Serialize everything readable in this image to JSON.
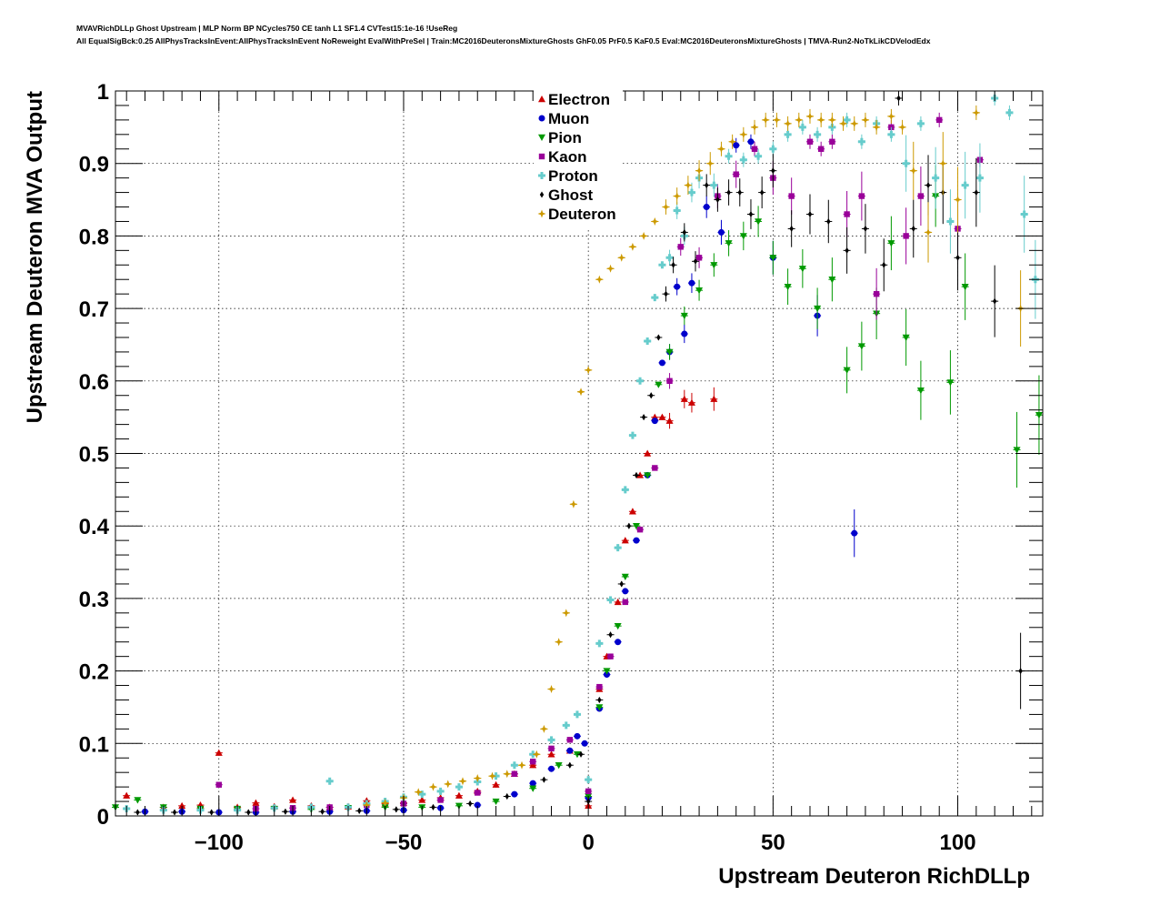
{
  "header": {
    "line1": "MVAVRichDLLp Ghost Upstream | MLP Norm BP NCycles750 CE tanh L1 SF1.4 CVTest15:1e-16 !UseReg",
    "line2": "All EqualSigBck:0.25 AllPhysTracksInEvent:AllPhysTracksInEvent NoReweight EvalWithPreSel | Train:MC2016DeuteronsMixtureGhosts GhF0.05 PrF0.5 KaF0.5 Eval:MC2016DeuteronsMixtureGhosts | TMVA-Run2-NoTkLikCDVelodEdx"
  },
  "chart_data": {
    "type": "scatter",
    "xlabel": "Upstream Deuteron RichDLLp",
    "ylabel": "Upstream Deuteron MVA Output",
    "xlim": [
      -128,
      123
    ],
    "ylim": [
      0,
      1
    ],
    "xticks": [
      -100,
      -50,
      0,
      50,
      100
    ],
    "yticks": [
      0,
      0.1,
      0.2,
      0.3,
      0.4,
      0.5,
      0.6,
      0.7,
      0.8,
      0.9,
      1
    ],
    "xtick_labels": [
      "−100",
      "−50",
      "0",
      "50",
      "100"
    ],
    "ytick_labels": [
      "0",
      "0.1",
      "0.2",
      "0.3",
      "0.4",
      "0.5",
      "0.6",
      "0.7",
      "0.8",
      "0.9",
      "1"
    ],
    "grid": true,
    "legend_position": "top-center",
    "series": [
      {
        "name": "Electron",
        "color": "#cc0000",
        "marker": "triangle-up",
        "x": [
          -125,
          -115,
          -110,
          -105,
          -100,
          -95,
          -90,
          -85,
          -80,
          -75,
          -70,
          -65,
          -60,
          -55,
          -50,
          -45,
          -40,
          -35,
          -30,
          -25,
          -20,
          -15,
          -10,
          -5,
          0,
          3,
          5,
          8,
          10,
          12,
          14,
          16,
          18,
          20,
          22,
          26,
          28,
          34
        ],
        "y": [
          0.028,
          0.012,
          0.014,
          0.015,
          0.087,
          0.012,
          0.018,
          0.013,
          0.022,
          0.014,
          0.012,
          0.013,
          0.021,
          0.017,
          0.018,
          0.022,
          0.025,
          0.028,
          0.034,
          0.043,
          0.058,
          0.07,
          0.085,
          0.09,
          0.014,
          0.175,
          0.22,
          0.295,
          0.38,
          0.42,
          0.47,
          0.5,
          0.55,
          0.55,
          0.545,
          0.575,
          0.57,
          0.575
        ]
      },
      {
        "name": "Muon",
        "color": "#0000cc",
        "marker": "circle",
        "x": [
          -120,
          -110,
          -100,
          -90,
          -80,
          -70,
          -60,
          -50,
          -40,
          -30,
          -20,
          -15,
          -10,
          -5,
          -3,
          -1,
          0,
          3,
          5,
          8,
          10,
          13,
          16,
          18,
          20,
          22,
          24,
          26,
          28,
          32,
          36,
          40,
          44,
          50,
          62,
          72
        ],
        "y": [
          0.006,
          0.006,
          0.005,
          0.005,
          0.006,
          0.006,
          0.007,
          0.008,
          0.011,
          0.015,
          0.03,
          0.045,
          0.065,
          0.09,
          0.11,
          0.1,
          0.025,
          0.148,
          0.195,
          0.24,
          0.31,
          0.38,
          0.47,
          0.545,
          0.625,
          0.64,
          0.73,
          0.665,
          0.735,
          0.84,
          0.805,
          0.925,
          0.93,
          0.77,
          0.69,
          0.39
        ]
      },
      {
        "name": "Pion",
        "color": "#009900",
        "marker": "triangle-down",
        "x": [
          -128,
          -122,
          -115,
          -105,
          -95,
          -85,
          -75,
          -65,
          -55,
          -45,
          -35,
          -25,
          -15,
          -8,
          -3,
          0,
          3,
          5,
          8,
          10,
          13,
          16,
          19,
          22,
          26,
          30,
          34,
          38,
          42,
          46,
          50,
          54,
          58,
          62,
          66,
          70,
          74,
          78,
          82,
          86,
          90,
          94,
          98,
          102,
          116,
          122
        ],
        "y": [
          0.012,
          0.022,
          0.012,
          0.01,
          0.01,
          0.01,
          0.009,
          0.011,
          0.012,
          0.012,
          0.014,
          0.02,
          0.038,
          0.07,
          0.085,
          0.027,
          0.15,
          0.2,
          0.262,
          0.33,
          0.4,
          0.47,
          0.595,
          0.64,
          0.69,
          0.725,
          0.76,
          0.79,
          0.8,
          0.82,
          0.77,
          0.73,
          0.755,
          0.7,
          0.74,
          0.615,
          0.648,
          0.693,
          0.79,
          0.66,
          0.587,
          0.855,
          0.598,
          0.73,
          0.505,
          0.553
        ]
      },
      {
        "name": "Kaon",
        "color": "#990099",
        "marker": "square",
        "x": [
          -100,
          -90,
          -80,
          -70,
          -60,
          -50,
          -40,
          -30,
          -20,
          -15,
          -10,
          -5,
          0,
          3,
          6,
          10,
          14,
          18,
          22,
          25,
          30,
          35,
          40,
          45,
          50,
          55,
          60,
          63,
          66,
          70,
          74,
          78,
          82,
          86,
          90,
          95,
          100,
          106
        ],
        "y": [
          0.043,
          0.01,
          0.011,
          0.012,
          0.015,
          0.017,
          0.022,
          0.032,
          0.058,
          0.075,
          0.093,
          0.105,
          0.034,
          0.178,
          0.22,
          0.295,
          0.395,
          0.48,
          0.6,
          0.785,
          0.77,
          0.855,
          0.885,
          0.92,
          0.88,
          0.855,
          0.93,
          0.92,
          0.93,
          0.83,
          0.855,
          0.72,
          0.95,
          0.8,
          0.855,
          0.96,
          0.81,
          0.905
        ]
      },
      {
        "name": "Proton",
        "color": "#66cccc",
        "marker": "cross",
        "x": [
          -125,
          -115,
          -105,
          -95,
          -85,
          -75,
          -70,
          -65,
          -60,
          -55,
          -50,
          -45,
          -40,
          -35,
          -30,
          -25,
          -20,
          -15,
          -10,
          -6,
          -3,
          0,
          3,
          6,
          8,
          10,
          12,
          14,
          16,
          18,
          20,
          22,
          24,
          26,
          28,
          30,
          34,
          38,
          42,
          46,
          50,
          54,
          58,
          62,
          66,
          70,
          74,
          78,
          82,
          86,
          90,
          94,
          98,
          102,
          106,
          110,
          114,
          118,
          121
        ],
        "y": [
          0.01,
          0.008,
          0.008,
          0.008,
          0.011,
          0.012,
          0.048,
          0.012,
          0.017,
          0.02,
          0.026,
          0.03,
          0.034,
          0.04,
          0.047,
          0.055,
          0.07,
          0.085,
          0.105,
          0.125,
          0.14,
          0.05,
          0.238,
          0.298,
          0.37,
          0.45,
          0.525,
          0.6,
          0.655,
          0.715,
          0.76,
          0.77,
          0.835,
          0.8,
          0.86,
          0.88,
          0.87,
          0.91,
          0.905,
          0.91,
          0.92,
          0.94,
          0.95,
          0.94,
          0.95,
          0.96,
          0.93,
          0.955,
          0.94,
          0.9,
          0.955,
          0.88,
          0.82,
          0.87,
          0.88,
          0.99,
          0.97,
          0.83,
          0.74
        ]
      },
      {
        "name": "Ghost",
        "color": "#000000",
        "marker": "diamond",
        "x": [
          -122,
          -112,
          -102,
          -92,
          -82,
          -72,
          -62,
          -52,
          -42,
          -32,
          -22,
          -12,
          -5,
          -2,
          0,
          3,
          6,
          9,
          11,
          13,
          15,
          17,
          19,
          21,
          23,
          26,
          29,
          32,
          35,
          38,
          41,
          44,
          47,
          50,
          55,
          60,
          65,
          70,
          75,
          80,
          84,
          88,
          92,
          96,
          100,
          105,
          110,
          117
        ],
        "y": [
          0.005,
          0.005,
          0.005,
          0.005,
          0.006,
          0.006,
          0.007,
          0.009,
          0.012,
          0.017,
          0.027,
          0.05,
          0.07,
          0.085,
          0.02,
          0.16,
          0.25,
          0.32,
          0.4,
          0.47,
          0.55,
          0.58,
          0.66,
          0.72,
          0.76,
          0.805,
          0.765,
          0.87,
          0.85,
          0.86,
          0.86,
          0.83,
          0.86,
          0.89,
          0.81,
          0.83,
          0.82,
          0.78,
          0.81,
          0.76,
          0.99,
          0.81,
          0.87,
          0.86,
          0.77,
          0.86,
          0.71,
          0.2
        ]
      },
      {
        "name": "Deuteron",
        "color": "#cc9900",
        "marker": "star",
        "x": [
          -60,
          -55,
          -50,
          -46,
          -42,
          -38,
          -34,
          -30,
          -26,
          -22,
          -18,
          -14,
          -12,
          -10,
          -8,
          -6,
          -4,
          -2,
          0,
          3,
          6,
          9,
          12,
          15,
          18,
          21,
          24,
          27,
          30,
          33,
          36,
          39,
          42,
          45,
          48,
          51,
          54,
          57,
          60,
          63,
          66,
          69,
          72,
          75,
          78,
          82,
          85,
          88,
          92,
          96,
          100,
          105,
          117
        ],
        "y": [
          0.015,
          0.018,
          0.025,
          0.033,
          0.04,
          0.044,
          0.048,
          0.052,
          0.055,
          0.058,
          0.07,
          0.085,
          0.12,
          0.175,
          0.24,
          0.28,
          0.43,
          0.585,
          0.615,
          0.74,
          0.755,
          0.77,
          0.785,
          0.8,
          0.82,
          0.84,
          0.855,
          0.87,
          0.89,
          0.9,
          0.92,
          0.93,
          0.94,
          0.95,
          0.96,
          0.96,
          0.955,
          0.96,
          0.965,
          0.96,
          0.96,
          0.955,
          0.955,
          0.96,
          0.95,
          0.965,
          0.95,
          0.89,
          0.805,
          0.9,
          0.85,
          0.97,
          0.7
        ]
      }
    ]
  }
}
